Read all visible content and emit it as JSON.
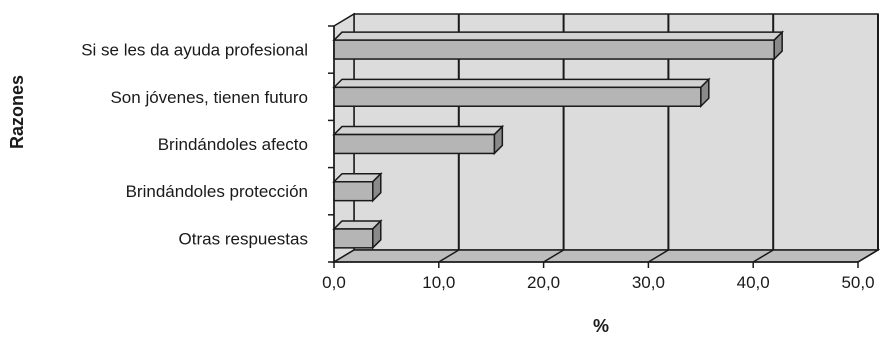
{
  "chart_data": {
    "type": "bar",
    "orientation": "horizontal",
    "style": "3d",
    "categories": [
      "Si se les da ayuda profesional",
      "Son jóvenes, tienen futuro",
      "Brindándoles afecto",
      "Brindándoles protección",
      "Otras respuestas"
    ],
    "values": [
      42.0,
      35.0,
      15.3,
      3.7,
      3.7
    ],
    "xlabel": "%",
    "ylabel": "Razones",
    "xlim": [
      0,
      50
    ],
    "xticks": [
      "0,0",
      "10,0",
      "20,0",
      "30,0",
      "40,0",
      "50,0"
    ],
    "grid": true,
    "legend": "none",
    "colors": {
      "bar_face": "#b5b5b5",
      "bar_top": "#d2d2d2",
      "bar_side": "#8a8a8a",
      "wall": "#dcdcdc",
      "floor": "#bdbdbd",
      "lines": "#1a1a1a"
    }
  }
}
